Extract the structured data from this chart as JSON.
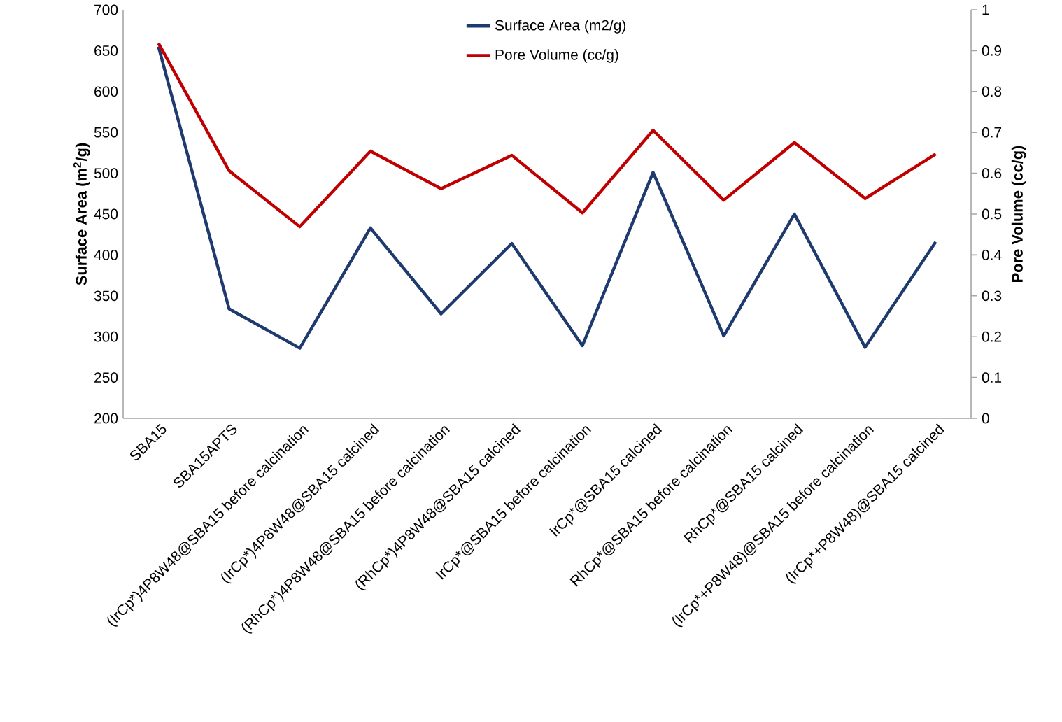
{
  "chart_data": {
    "type": "line",
    "categories": [
      "SBA15",
      "SBA15APTS",
      "(IrCp*)4P8W48@SBA15 before calcination",
      "(IrCp*)4P8W48@SBA15 calcined",
      "(RhCp*)4P8W48@SBA15 before calcination",
      "(RhCp*)4P8W48@SBA15 calcined",
      "IrCp*@SBA15 before calcination",
      "IrCp*@SBA15 calcined",
      "RhCp*@SBA15 before calcination",
      "RhCp*@SBA15 calcined",
      "(IrCp*+P8W48)@SBA15 before calcination",
      "(IrCp*+P8W48)@SBA15 calcined"
    ],
    "series": [
      {
        "name": "Surface Area (m2/g)",
        "color": "#1f3a6e",
        "values": [
          655,
          334,
          286,
          433,
          328,
          414,
          289,
          501,
          301,
          450,
          287,
          416
        ]
      },
      {
        "name": "Pore Volume (cc/g)",
        "color": "#c00000",
        "axis": "y2",
        "values": [
          0.918,
          0.606,
          0.469,
          0.654,
          0.562,
          0.644,
          0.503,
          0.705,
          0.534,
          0.675,
          0.538,
          0.647
        ]
      }
    ],
    "ylabel": "Surface Area (m$^{2}$/g)",
    "y2label": "Pore Volume (cc/g)",
    "ylim": [
      200,
      700
    ],
    "yticks": [
      200,
      250,
      300,
      350,
      400,
      450,
      500,
      550,
      600,
      650,
      700
    ],
    "y2lim": [
      0,
      1
    ],
    "y2ticks": [
      0,
      0.1,
      0.2,
      0.3,
      0.4,
      0.5,
      0.6,
      0.7,
      0.8,
      0.9,
      1
    ],
    "legend": "top",
    "marker": "none",
    "line_style": "solid",
    "grid": false
  }
}
